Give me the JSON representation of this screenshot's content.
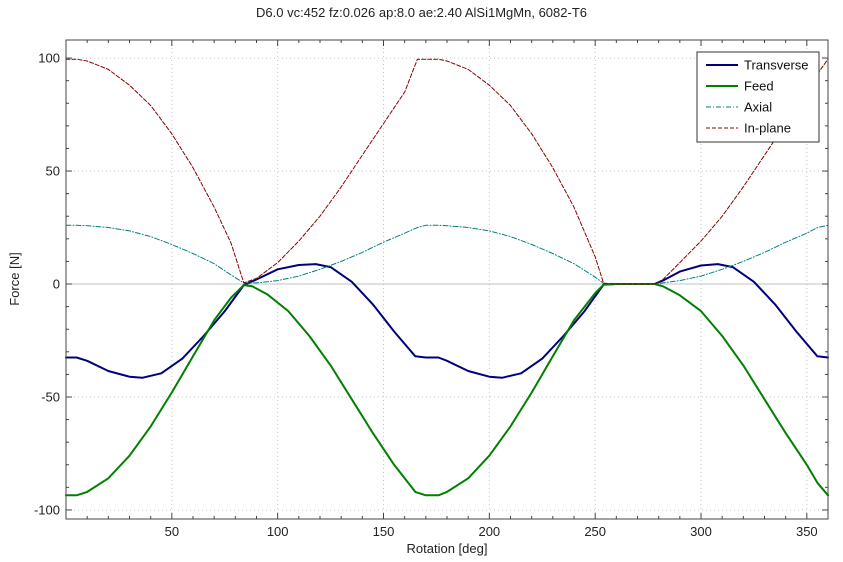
{
  "chart_data": {
    "type": "line",
    "title": "D6.0 vc:452 fz:0.026 ap:8.0 ae:2.40 AlSi1MgMn, 6082-T6",
    "xlabel": "Rotation [deg]",
    "ylabel": "Force [N]",
    "xlim": [
      0,
      360
    ],
    "ylim": [
      -104,
      108
    ],
    "grid": true,
    "legend_position": "top-right",
    "x_ticks": [
      50,
      100,
      150,
      200,
      250,
      300,
      350
    ],
    "x_tick_labels": [
      "50",
      "100",
      "150",
      "200",
      "250",
      "300",
      "350"
    ],
    "y_ticks": [
      -100,
      -50,
      0,
      50,
      100
    ],
    "y_tick_labels": [
      "-100",
      "-50",
      "0",
      "50",
      "100"
    ],
    "series": [
      {
        "name": "Transverse",
        "color": "#00007f",
        "style": "solid",
        "x": [
          0,
          5,
          10,
          20,
          30,
          36,
          45,
          55,
          65,
          75,
          84,
          90,
          100,
          110,
          118,
          125,
          135,
          145,
          155,
          165,
          170,
          176,
          180,
          190,
          200,
          206,
          215,
          225,
          235,
          245,
          254,
          260,
          270,
          278,
          282,
          290,
          300,
          308,
          315,
          325,
          335,
          345,
          355,
          360
        ],
        "y": [
          -32.5,
          -32.5,
          -34,
          -38.5,
          -41,
          -41.5,
          -39.5,
          -33,
          -23,
          -12,
          -0.5,
          2,
          6.5,
          8.4,
          8.8,
          7.5,
          1,
          -9,
          -21,
          -32,
          -32.5,
          -32.5,
          -34,
          -38.5,
          -41,
          -41.5,
          -39.5,
          -33,
          -23,
          -12,
          -0.2,
          0,
          0,
          0,
          1.5,
          5.5,
          8.2,
          8.8,
          7.5,
          1,
          -9,
          -21,
          -32,
          -32.5
        ]
      },
      {
        "name": "Feed",
        "color": "#008000",
        "style": "solid",
        "x": [
          0,
          5,
          10,
          20,
          30,
          40,
          50,
          60,
          70,
          78,
          84,
          88,
          95,
          105,
          115,
          125,
          135,
          145,
          155,
          160,
          165,
          170,
          176,
          180,
          190,
          200,
          210,
          220,
          230,
          240,
          250,
          254,
          260,
          270,
          278,
          282,
          290,
          300,
          310,
          320,
          330,
          340,
          350,
          355,
          360
        ],
        "y": [
          -93.5,
          -93.5,
          -92,
          -86,
          -76,
          -63,
          -48,
          -32,
          -16,
          -6,
          -0.5,
          -1,
          -4.5,
          -12,
          -23,
          -36,
          -51,
          -66,
          -80,
          -86,
          -92,
          -93.5,
          -93.5,
          -92,
          -86,
          -76,
          -63,
          -48,
          -32,
          -16,
          -4,
          -0.3,
          0,
          0,
          0,
          -1,
          -5,
          -12,
          -23,
          -36,
          -51,
          -66,
          -80,
          -88,
          -93.5
        ]
      },
      {
        "name": "Axial",
        "color": "#008080",
        "style": "dash-dot",
        "x": [
          0,
          5,
          10,
          20,
          30,
          40,
          50,
          60,
          70,
          78,
          84,
          90,
          100,
          110,
          120,
          130,
          140,
          150,
          160,
          166,
          170,
          176,
          180,
          190,
          200,
          210,
          220,
          230,
          240,
          250,
          254,
          260,
          270,
          278,
          282,
          290,
          300,
          310,
          320,
          330,
          340,
          350,
          355,
          360
        ],
        "y": [
          26,
          26,
          25.8,
          25,
          23.5,
          21,
          17.5,
          13.5,
          9,
          4,
          0.5,
          0.5,
          1.5,
          3.5,
          6.5,
          10,
          14,
          18.5,
          22.5,
          25,
          26,
          26,
          25.8,
          25,
          23.5,
          21,
          17.5,
          13.5,
          9,
          3,
          0.3,
          0,
          0,
          0,
          0.5,
          1.5,
          3.5,
          6.5,
          10,
          14,
          18.5,
          22.5,
          25,
          26
        ]
      },
      {
        "name": "In-plane",
        "color": "#8b0000",
        "style": "dashed",
        "x": [
          0,
          5,
          10,
          20,
          30,
          40,
          50,
          60,
          70,
          78,
          84,
          90,
          100,
          110,
          120,
          130,
          140,
          150,
          160,
          166,
          170,
          176,
          180,
          190,
          200,
          210,
          220,
          230,
          240,
          250,
          254,
          260,
          270,
          278,
          282,
          290,
          300,
          310,
          320,
          330,
          340,
          350,
          355,
          360
        ],
        "y": [
          99.5,
          99.5,
          98.7,
          95,
          88,
          79,
          66.5,
          51.5,
          34,
          18,
          0.5,
          2.5,
          9.5,
          19,
          30,
          43,
          57,
          71,
          85,
          99.5,
          99.5,
          99.5,
          98.7,
          95,
          88,
          79,
          66.5,
          51.5,
          34,
          12,
          0.3,
          0,
          0,
          0,
          2,
          9.5,
          19,
          30,
          43,
          57,
          71,
          85,
          93,
          99.5
        ]
      }
    ]
  }
}
